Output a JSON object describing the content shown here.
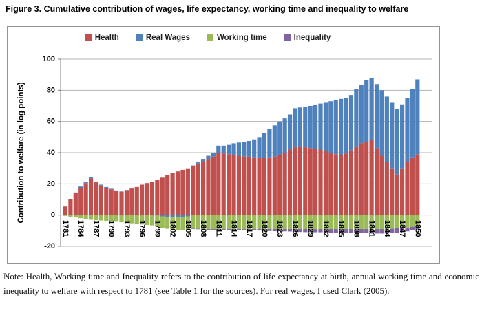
{
  "page": {
    "figure_title": "Figure 3. Cumulative contribution of wages, life expectancy, working time and inequality to welfare",
    "note": "Note: Health, Working time and Inequality refers to the contribution of life expectancy at birth, annual working time and economic inequality to welfare with respect to 1781 (see Table 1 for the sources). For real wages, I used Clark (2005)."
  },
  "chart_data": {
    "type": "bar",
    "stacked": true,
    "title": "",
    "xlabel": "",
    "ylabel": "Contribution to welfare (in log points)",
    "ylim": [
      -20,
      100
    ],
    "yticks": [
      100,
      80,
      60,
      40,
      20,
      0,
      -20
    ],
    "xtick_step": 3,
    "grid": true,
    "legend_position": "top",
    "colors": {
      "gridline": "#b3b3b3",
      "axis": "#7f7f7f",
      "frame_border": "#949494",
      "text": "#000000"
    },
    "categories": [
      1781,
      1782,
      1783,
      1784,
      1785,
      1786,
      1787,
      1788,
      1789,
      1790,
      1791,
      1792,
      1793,
      1794,
      1795,
      1796,
      1797,
      1798,
      1799,
      1800,
      1801,
      1802,
      1803,
      1804,
      1805,
      1806,
      1807,
      1808,
      1809,
      1810,
      1811,
      1812,
      1813,
      1814,
      1815,
      1816,
      1817,
      1818,
      1819,
      1820,
      1821,
      1822,
      1823,
      1824,
      1825,
      1826,
      1827,
      1828,
      1829,
      1830,
      1831,
      1832,
      1833,
      1834,
      1835,
      1836,
      1837,
      1838,
      1839,
      1840,
      1841,
      1842,
      1843,
      1844,
      1845,
      1846,
      1847,
      1848,
      1849,
      1850
    ],
    "series": [
      {
        "name": "Health",
        "color": "#C0504D",
        "values": [
          5.5,
          10,
          14,
          17.5,
          20.5,
          23.5,
          21,
          19,
          17.5,
          16.5,
          15.5,
          15,
          16,
          17,
          18,
          19.5,
          20.5,
          21.5,
          22.5,
          24,
          25.5,
          27,
          28,
          29,
          30,
          31.5,
          33,
          34.5,
          36,
          37.5,
          40,
          39.5,
          39,
          38.5,
          38,
          37.5,
          37.5,
          37,
          36.5,
          36.5,
          37,
          37.5,
          38.5,
          40,
          42,
          43.5,
          44,
          43.5,
          43,
          42.5,
          42,
          41,
          40,
          39,
          38.5,
          39.5,
          41.5,
          44,
          46,
          47,
          48,
          43,
          38,
          34,
          30,
          26,
          30,
          34,
          37,
          39
        ]
      },
      {
        "name": "Real Wages",
        "color": "#4F81BD",
        "values": [
          0,
          0.3,
          0.5,
          0.8,
          0.6,
          0.6,
          0.5,
          0.5,
          0.5,
          0.4,
          0.3,
          0.2,
          0.1,
          0,
          0,
          0,
          0,
          0,
          -0.3,
          -0.8,
          -1.2,
          -1.5,
          -1.5,
          -1.2,
          -0.8,
          0.3,
          0.8,
          1.5,
          2,
          2.5,
          4.5,
          5,
          6,
          7.5,
          8.5,
          9.5,
          10,
          11.5,
          13.5,
          16,
          18,
          20,
          21.5,
          22,
          22.5,
          25,
          25,
          26,
          27,
          28,
          29.5,
          31,
          33,
          35,
          36,
          35.5,
          35.5,
          37,
          37.5,
          39.5,
          40,
          41,
          42,
          42,
          42,
          42,
          41,
          41,
          44,
          48
        ]
      },
      {
        "name": "Working time",
        "color": "#9BBB59",
        "values": [
          -0.5,
          -1,
          -1.5,
          -2,
          -2.5,
          -3,
          -3.2,
          -3.5,
          -3.8,
          -4,
          -4.3,
          -4.6,
          -5,
          -5.3,
          -5.6,
          -6,
          -6.3,
          -6.6,
          -7,
          -7.3,
          -7.6,
          -8,
          -8.2,
          -8.4,
          -8.5,
          -8.7,
          -8.8,
          -9,
          -9,
          -9,
          -9,
          -9,
          -9,
          -9,
          -9,
          -9,
          -9,
          -9,
          -9,
          -9,
          -9,
          -9,
          -9,
          -9,
          -9,
          -9,
          -9,
          -9,
          -9,
          -9,
          -9,
          -9,
          -9,
          -9,
          -9,
          -9,
          -9,
          -9,
          -9,
          -9,
          -9,
          -9,
          -9,
          -9,
          -8.8,
          -8.5,
          -8.2,
          -8,
          -7.5,
          -7
        ]
      },
      {
        "name": "Inequality",
        "color": "#8064A2",
        "values": [
          0,
          0,
          0,
          0,
          0,
          0,
          0,
          0,
          0,
          0,
          0,
          0,
          0,
          0,
          0,
          0,
          0,
          0,
          0,
          0,
          0,
          0,
          0,
          0,
          -0.3,
          -0.3,
          -0.3,
          -0.4,
          -0.5,
          -0.5,
          -0.7,
          -0.7,
          -0.7,
          -0.7,
          -0.7,
          -0.8,
          -0.8,
          -0.8,
          -0.9,
          -1.2,
          -1.2,
          -1.3,
          -1.3,
          -1.4,
          -1.5,
          -1.8,
          -1.8,
          -1.9,
          -1.9,
          -2,
          -2,
          -2,
          -2.3,
          -2.3,
          -2.3,
          -2.5,
          -2.5,
          -2.5,
          -2.5,
          -2.6,
          -2.8,
          -2.8,
          -2.8,
          -2.8,
          -2.7,
          -2.7,
          -2.6,
          -2.4,
          -2.3,
          -2.2
        ]
      }
    ]
  }
}
